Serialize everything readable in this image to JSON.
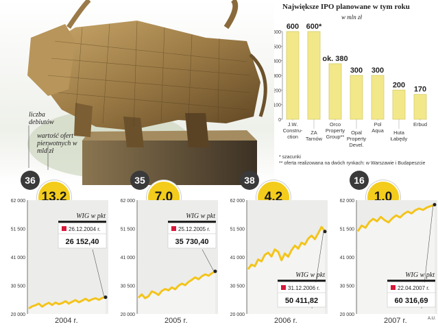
{
  "ipo": {
    "title": "Największe IPO planowane w tym roku",
    "unit": "w mln zł",
    "notes": [
      "* szacunki",
      "** oferta realizowana na dwóch rynkach: w Warszawie i Budapeszcie"
    ]
  },
  "legend": {
    "debut_label": "liczba debiutów",
    "value_label": "wartość ofert pierwotnych w mld zł"
  },
  "credit": "A.U.",
  "colors": {
    "bar": "#f2e88a",
    "line": "#f3c41a",
    "circle_yellow": "#f3cc1c",
    "circle_dark": "#3a3a3a",
    "marker": "#d8193a",
    "panel_bg": "#ececea"
  },
  "chart_data": [
    {
      "type": "bar",
      "title": "Największe IPO planowane w tym roku",
      "ylabel": "w mln zł",
      "ylim": [
        0,
        600
      ],
      "yticks": [
        0,
        100,
        200,
        300,
        400,
        500,
        600
      ],
      "categories": [
        "J.W. Construction",
        "ZA Tarnów",
        "Orco Property Group**",
        "Opal Property Devel.",
        "Pol Aqua",
        "Huta Łabędy",
        "Erbud"
      ],
      "category_lines": [
        [
          "J.W.",
          "Constru-",
          "ction"
        ],
        [
          "ZA",
          "Tarnów"
        ],
        [
          "Orco",
          "Property",
          "Group**"
        ],
        [
          "Opal",
          "Property",
          "Devel."
        ],
        [
          "Pol",
          "Aqua"
        ],
        [
          "Huta",
          "Łabędy"
        ],
        [
          "Erbud"
        ]
      ],
      "values": [
        600,
        600,
        380,
        300,
        300,
        200,
        170
      ],
      "value_labels": [
        "600",
        "600*",
        "ok. 380",
        "300",
        "300",
        "200",
        "170"
      ]
    },
    {
      "type": "line",
      "year": "2004 r.",
      "debuts": "36",
      "offer_value": "13,2",
      "wig_label": "WIG w pkt",
      "date_label": "26.12.2004 r.",
      "last_value_label": "26 152,40",
      "ylim": [
        20000,
        62000
      ],
      "yticks": [
        "62 000",
        "51 500",
        "41 000",
        "30 500",
        "20 000"
      ],
      "values": [
        22000,
        22800,
        23200,
        23800,
        22700,
        23500,
        24100,
        23300,
        24200,
        23600,
        24000,
        24700,
        23800,
        24500,
        25100,
        24300,
        24900,
        25600,
        24800,
        25400,
        25800,
        25200,
        25900,
        26152
      ]
    },
    {
      "type": "line",
      "year": "2005 r.",
      "debuts": "35",
      "offer_value": "7,0",
      "wig_label": "WIG w pkt",
      "date_label": "25.12.2005 r.",
      "last_value_label": "35 730,40",
      "ylim": [
        20000,
        62000
      ],
      "yticks": [
        "62 000",
        "51 500",
        "41 000",
        "30 500",
        "20 000"
      ],
      "values": [
        26000,
        27200,
        25800,
        26500,
        28300,
        27800,
        27000,
        28500,
        29200,
        28700,
        29800,
        29100,
        30400,
        31200,
        30600,
        31800,
        32600,
        33500,
        32800,
        33900,
        34600,
        34100,
        35000,
        35730
      ]
    },
    {
      "type": "line",
      "year": "2006 r.",
      "debuts": "38",
      "offer_value": "4,2",
      "wig_label": "WIG w pkt",
      "date_label": "31.12.2006 r.",
      "last_value_label": "50 411,82",
      "ylim": [
        20000,
        62000
      ],
      "yticks": [
        "62 000",
        "51 500",
        "41 000",
        "30 500",
        "20 000"
      ],
      "values": [
        36500,
        38200,
        37600,
        40100,
        39400,
        41800,
        42600,
        41200,
        43800,
        42900,
        39800,
        42300,
        41100,
        43500,
        45200,
        44100,
        46300,
        45600,
        47800,
        48900,
        47600,
        49800,
        52100,
        50412
      ]
    },
    {
      "type": "line",
      "year": "2007 r.",
      "debuts": "16",
      "offer_value": "1,0",
      "wig_label": "WIG w pkt",
      "date_label": "22.04.2007 r.",
      "last_value_label": "60 316,69",
      "ylim": [
        20000,
        62000
      ],
      "yticks": [
        "62 000",
        "51 500",
        "41 000",
        "30 500",
        "20 000"
      ],
      "values": [
        50500,
        52600,
        51800,
        53900,
        55100,
        54200,
        55800,
        54600,
        53800,
        55300,
        56400,
        55600,
        56900,
        57800,
        57100,
        58300,
        58900,
        58400,
        59300,
        59800,
        60316
      ]
    }
  ]
}
